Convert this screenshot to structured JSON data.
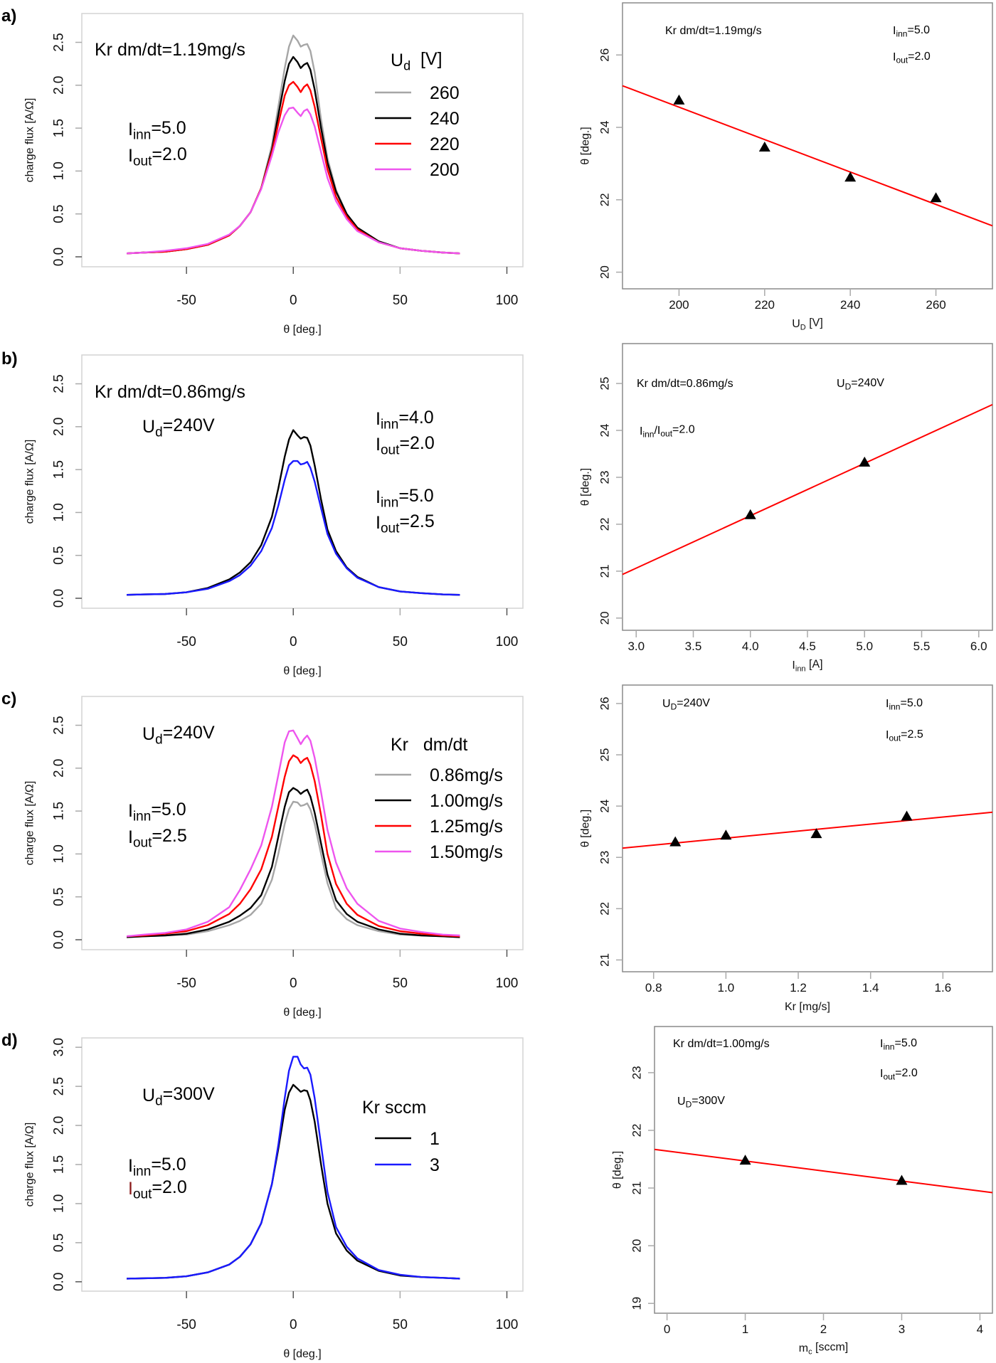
{
  "figure": {
    "panels": [
      {
        "letter": "a)"
      },
      {
        "letter": "b)"
      },
      {
        "letter": "c)"
      },
      {
        "letter": "d)"
      }
    ]
  },
  "chart_data": [
    {
      "id": "a-left",
      "type": "line",
      "title": "",
      "xlabel": "θ [deg.]",
      "ylabel": "charge flux [A/Ω]",
      "xlim": [
        -99,
        107.5
      ],
      "ylim": [
        -0.116,
        2.836
      ],
      "xticks": [
        -50,
        0,
        50,
        100
      ],
      "yticks": [
        0.0,
        0.5,
        1.0,
        1.5,
        2.0,
        2.5
      ],
      "ytick_labels": [
        "0.0",
        "0.5",
        "1.0",
        "1.5",
        "2.0",
        "2.5"
      ],
      "grid": false,
      "x": [
        -78,
        -70,
        -60,
        -50,
        -40,
        -30,
        -25,
        -20,
        -15,
        -10,
        -7,
        -4,
        -2,
        0,
        2,
        3.5,
        5,
        6.5,
        8,
        10,
        13,
        16,
        20,
        25,
        30,
        40,
        50,
        60,
        70,
        78
      ],
      "series": [
        {
          "name": "260",
          "color": "#a6a6a6",
          "values": [
            0.04,
            0.05,
            0.06,
            0.09,
            0.14,
            0.25,
            0.36,
            0.52,
            0.8,
            1.3,
            1.75,
            2.2,
            2.45,
            2.58,
            2.52,
            2.45,
            2.47,
            2.48,
            2.4,
            2.15,
            1.6,
            1.15,
            0.78,
            0.5,
            0.34,
            0.18,
            0.1,
            0.07,
            0.05,
            0.04
          ]
        },
        {
          "name": "240",
          "color": "#000000",
          "values": [
            0.04,
            0.05,
            0.06,
            0.09,
            0.14,
            0.25,
            0.36,
            0.52,
            0.8,
            1.25,
            1.65,
            2.05,
            2.25,
            2.33,
            2.27,
            2.2,
            2.24,
            2.26,
            2.18,
            1.95,
            1.5,
            1.1,
            0.76,
            0.5,
            0.34,
            0.18,
            0.1,
            0.07,
            0.05,
            0.04
          ]
        },
        {
          "name": "220",
          "color": "#ff0000",
          "values": [
            0.04,
            0.05,
            0.06,
            0.09,
            0.14,
            0.25,
            0.36,
            0.52,
            0.8,
            1.22,
            1.55,
            1.88,
            2.0,
            2.04,
            1.98,
            1.92,
            1.98,
            2.01,
            1.94,
            1.75,
            1.38,
            1.02,
            0.7,
            0.47,
            0.32,
            0.17,
            0.1,
            0.07,
            0.05,
            0.04
          ]
        },
        {
          "name": "200",
          "color": "#ee55ee",
          "values": [
            0.04,
            0.05,
            0.07,
            0.1,
            0.15,
            0.26,
            0.36,
            0.52,
            0.79,
            1.18,
            1.45,
            1.65,
            1.73,
            1.74,
            1.68,
            1.64,
            1.7,
            1.72,
            1.66,
            1.52,
            1.22,
            0.92,
            0.65,
            0.44,
            0.3,
            0.17,
            0.1,
            0.07,
            0.05,
            0.04
          ]
        }
      ],
      "legend": {
        "title_main": "U",
        "title_sub": "d",
        "title_rest": "  [V]",
        "placement": "top-right"
      },
      "annotations": [
        {
          "main": "Kr dm/dt=1.19mg/s",
          "sub": "",
          "rest": "",
          "color": "#000000"
        },
        {
          "main": "I",
          "sub": "inn",
          "rest": "=5.0",
          "color": "#000000"
        },
        {
          "main": "I",
          "sub": "out",
          "rest": "=2.0",
          "color": "#000000"
        }
      ]
    },
    {
      "id": "a-right",
      "type": "scatter",
      "xlabel_main": "U",
      "xlabel_sub": "D",
      "xlabel_rest": " [V]",
      "ylabel": "θ [deg.]",
      "xlim": [
        186.8,
        273.2
      ],
      "ylim": [
        19.54,
        27.44
      ],
      "xticks": [
        200,
        220,
        240,
        260
      ],
      "yticks": [
        20,
        22,
        24,
        26
      ],
      "grid": false,
      "points": {
        "x": [
          200,
          220,
          240,
          260
        ],
        "y": [
          24.75,
          23.45,
          22.62,
          22.05
        ]
      },
      "fit_line": {
        "x": [
          186.8,
          273.2
        ],
        "y": [
          25.15,
          21.28
        ],
        "color": "#ff0000"
      },
      "annotations": [
        {
          "main": "Kr dm/dt=1.19mg/s",
          "sub": "",
          "rest": ""
        },
        {
          "main": "I",
          "sub": "inn",
          "rest": "=5.0"
        },
        {
          "main": "I",
          "sub": "out",
          "rest": "=2.0"
        }
      ]
    },
    {
      "id": "b-left",
      "type": "line",
      "xlabel": "θ [deg.]",
      "ylabel": "charge flux [A/Ω]",
      "xlim": [
        -99,
        107.5
      ],
      "ylim": [
        -0.116,
        2.836
      ],
      "xticks": [
        -50,
        0,
        50,
        100
      ],
      "yticks": [
        0.0,
        0.5,
        1.0,
        1.5,
        2.0,
        2.5
      ],
      "ytick_labels": [
        "0.0",
        "0.5",
        "1.0",
        "1.5",
        "2.0",
        "2.5"
      ],
      "grid": false,
      "x": [
        -78,
        -70,
        -60,
        -50,
        -40,
        -30,
        -25,
        -20,
        -15,
        -10,
        -7,
        -4,
        -2,
        0,
        2,
        3.5,
        5,
        6.5,
        8,
        10,
        13,
        16,
        20,
        25,
        30,
        40,
        50,
        60,
        70,
        78
      ],
      "series": [
        {
          "name": "Iinn=4.0 Iout=2.0",
          "color": "#000000",
          "values": [
            0.04,
            0.045,
            0.05,
            0.07,
            0.12,
            0.22,
            0.3,
            0.42,
            0.62,
            0.95,
            1.28,
            1.65,
            1.85,
            1.96,
            1.9,
            1.86,
            1.88,
            1.87,
            1.78,
            1.55,
            1.15,
            0.8,
            0.55,
            0.36,
            0.25,
            0.13,
            0.08,
            0.06,
            0.045,
            0.04
          ]
        },
        {
          "name": "Iinn=5.0 Iout=2.5",
          "color": "#1a1aff",
          "values": [
            0.04,
            0.045,
            0.05,
            0.07,
            0.11,
            0.2,
            0.27,
            0.38,
            0.55,
            0.82,
            1.08,
            1.38,
            1.55,
            1.6,
            1.6,
            1.56,
            1.57,
            1.59,
            1.52,
            1.36,
            1.05,
            0.75,
            0.52,
            0.35,
            0.24,
            0.13,
            0.08,
            0.06,
            0.045,
            0.04
          ]
        }
      ],
      "annotations": [
        {
          "main": "Kr dm/dt=0.86mg/s",
          "sub": "",
          "rest": "",
          "color": "#000000"
        },
        {
          "main": "U",
          "sub": "d",
          "rest": "=240V",
          "color": "#000000"
        },
        {
          "main": "I",
          "sub": "inn",
          "rest": "=4.0",
          "color": "#000000"
        },
        {
          "main": "I",
          "sub": "out",
          "rest": "=2.0",
          "color": "#000000"
        },
        {
          "main": "I",
          "sub": "inn",
          "rest": "=5.0",
          "color": "#1a1aff"
        },
        {
          "main": "I",
          "sub": "out",
          "rest": "=2.5",
          "color": "#1a1aff"
        }
      ]
    },
    {
      "id": "b-right",
      "type": "scatter",
      "xlabel_main": "I",
      "xlabel_sub": "inn",
      "xlabel_rest": " [A]",
      "ylabel": "θ [deg.]",
      "xlim": [
        2.88,
        6.12
      ],
      "ylim": [
        19.74,
        25.85
      ],
      "xticks": [
        3.0,
        3.5,
        4.0,
        4.5,
        5.0,
        5.5,
        6.0
      ],
      "xtick_labels": [
        "3.0",
        "3.5",
        "4.0",
        "4.5",
        "5.0",
        "5.5",
        "6.0"
      ],
      "yticks": [
        20,
        21,
        22,
        23,
        24,
        25
      ],
      "grid": false,
      "points": {
        "x": [
          4.0,
          5.0
        ],
        "y": [
          22.2,
          23.32
        ]
      },
      "fit_line": {
        "x": [
          2.88,
          6.12
        ],
        "y": [
          20.93,
          24.55
        ],
        "color": "#ff0000"
      },
      "annotations": [
        {
          "main": "Kr dm/dt=0.86mg/s",
          "sub": "",
          "rest": ""
        },
        {
          "main": "U",
          "sub": "D",
          "rest": "=240V"
        },
        {
          "main": "I",
          "sub": "inn",
          "rest": "/I",
          "sub2": "out",
          "rest2": "=2.0"
        }
      ]
    },
    {
      "id": "c-left",
      "type": "line",
      "xlabel": "θ [deg.]",
      "ylabel": "charge flux [A/Ω]",
      "xlim": [
        -99,
        107.5
      ],
      "ylim": [
        -0.116,
        2.836
      ],
      "xticks": [
        -50,
        0,
        50,
        100
      ],
      "yticks": [
        0.0,
        0.5,
        1.0,
        1.5,
        2.0,
        2.5
      ],
      "ytick_labels": [
        "0.0",
        "0.5",
        "1.0",
        "1.5",
        "2.0",
        "2.5"
      ],
      "grid": false,
      "x": [
        -78,
        -70,
        -60,
        -50,
        -40,
        -30,
        -25,
        -20,
        -15,
        -10,
        -7,
        -4,
        -2,
        0,
        2,
        3.5,
        5,
        6.5,
        8,
        10,
        13,
        16,
        20,
        25,
        30,
        40,
        50,
        60,
        70,
        78
      ],
      "series": [
        {
          "name": "0.86mg/s",
          "color": "#a6a6a6",
          "values": [
            0.03,
            0.04,
            0.05,
            0.06,
            0.1,
            0.17,
            0.22,
            0.29,
            0.42,
            0.7,
            1.0,
            1.35,
            1.52,
            1.61,
            1.6,
            1.56,
            1.57,
            1.59,
            1.52,
            1.35,
            1.0,
            0.66,
            0.37,
            0.24,
            0.17,
            0.1,
            0.06,
            0.05,
            0.04,
            0.03
          ]
        },
        {
          "name": "1.00mg/s",
          "color": "#000000",
          "values": [
            0.03,
            0.04,
            0.05,
            0.07,
            0.12,
            0.21,
            0.28,
            0.37,
            0.52,
            0.85,
            1.2,
            1.55,
            1.72,
            1.77,
            1.74,
            1.7,
            1.73,
            1.75,
            1.67,
            1.48,
            1.12,
            0.76,
            0.46,
            0.3,
            0.21,
            0.12,
            0.07,
            0.05,
            0.04,
            0.03
          ]
        },
        {
          "name": "1.25mg/s",
          "color": "#ff0000",
          "values": [
            0.04,
            0.05,
            0.07,
            0.1,
            0.17,
            0.3,
            0.42,
            0.59,
            0.82,
            1.2,
            1.55,
            1.9,
            2.08,
            2.15,
            2.12,
            2.06,
            2.1,
            2.12,
            2.04,
            1.85,
            1.45,
            1.0,
            0.65,
            0.42,
            0.29,
            0.16,
            0.1,
            0.07,
            0.05,
            0.04
          ]
        },
        {
          "name": "1.50mg/s",
          "color": "#ee55ee",
          "values": [
            0.04,
            0.06,
            0.08,
            0.12,
            0.21,
            0.38,
            0.58,
            0.82,
            1.1,
            1.55,
            1.92,
            2.3,
            2.43,
            2.44,
            2.35,
            2.28,
            2.34,
            2.38,
            2.32,
            2.12,
            1.72,
            1.28,
            0.9,
            0.6,
            0.42,
            0.22,
            0.13,
            0.09,
            0.06,
            0.05
          ]
        }
      ],
      "legend": {
        "title_main": "Kr",
        "title_sub": "",
        "title_rest": "   dm/dt",
        "placement": "top-right"
      },
      "annotations": [
        {
          "main": "U",
          "sub": "d",
          "rest": "=240V",
          "color": "#000000"
        },
        {
          "main": "I",
          "sub": "inn",
          "rest": "=5.0",
          "color": "#000000"
        },
        {
          "main": "I",
          "sub": "out",
          "rest": "=2.5",
          "color": "#000000"
        }
      ]
    },
    {
      "id": "c-right",
      "type": "scatter",
      "xlabel_main": "Kr [mg/s]",
      "xlabel_sub": "",
      "xlabel_rest": "",
      "ylabel": "θ [deg.]",
      "xlim": [
        0.714,
        1.737
      ],
      "ylim": [
        20.77,
        26.36
      ],
      "xticks": [
        0.8,
        1.0,
        1.2,
        1.4,
        1.6
      ],
      "xtick_labels": [
        "0.8",
        "1.0",
        "1.2",
        "1.4",
        "1.6"
      ],
      "yticks": [
        21,
        22,
        23,
        24,
        25,
        26
      ],
      "grid": false,
      "points": {
        "x": [
          0.86,
          1.0,
          1.25,
          1.5
        ],
        "y": [
          23.3,
          23.43,
          23.46,
          23.8
        ]
      },
      "fit_line": {
        "x": [
          0.714,
          1.737
        ],
        "y": [
          23.18,
          23.88
        ],
        "color": "#ff0000"
      },
      "annotations": [
        {
          "main": "U",
          "sub": "D",
          "rest": "=240V"
        },
        {
          "main": "I",
          "sub": "inn",
          "rest": "=5.0"
        },
        {
          "main": "I",
          "sub": "out",
          "rest": "=2.5"
        }
      ]
    },
    {
      "id": "d-left",
      "type": "line",
      "xlabel": "θ [deg.]",
      "ylabel": "charge flux [A/Ω]",
      "xlim": [
        -99,
        107.5
      ],
      "ylim": [
        -0.12,
        3.12
      ],
      "xticks": [
        -50,
        0,
        50,
        100
      ],
      "yticks": [
        0.0,
        0.5,
        1.0,
        1.5,
        2.0,
        2.5,
        3.0
      ],
      "ytick_labels": [
        "0.0",
        "0.5",
        "1.0",
        "1.5",
        "2.0",
        "2.5",
        "3.0"
      ],
      "grid": false,
      "x": [
        -78,
        -70,
        -60,
        -50,
        -40,
        -30,
        -25,
        -20,
        -15,
        -10,
        -7,
        -4,
        -2,
        0,
        2,
        3.5,
        5,
        6.5,
        8,
        10,
        13,
        16,
        20,
        25,
        30,
        40,
        50,
        60,
        70,
        78
      ],
      "series": [
        {
          "name": "1",
          "color": "#000000",
          "values": [
            0.04,
            0.045,
            0.05,
            0.07,
            0.12,
            0.22,
            0.32,
            0.48,
            0.75,
            1.25,
            1.7,
            2.2,
            2.42,
            2.52,
            2.47,
            2.43,
            2.45,
            2.44,
            2.32,
            2.05,
            1.5,
            1.0,
            0.62,
            0.4,
            0.27,
            0.14,
            0.08,
            0.06,
            0.05,
            0.04
          ]
        },
        {
          "name": "3",
          "color": "#1a1aff",
          "values": [
            0.04,
            0.045,
            0.05,
            0.07,
            0.12,
            0.22,
            0.32,
            0.48,
            0.75,
            1.25,
            1.75,
            2.35,
            2.7,
            2.88,
            2.88,
            2.78,
            2.73,
            2.74,
            2.65,
            2.35,
            1.75,
            1.15,
            0.7,
            0.45,
            0.3,
            0.15,
            0.09,
            0.06,
            0.05,
            0.04
          ]
        }
      ],
      "legend": {
        "title_main": "Kr  sccm",
        "title_sub": "",
        "title_rest": "",
        "placement": "top-right"
      },
      "annotations": [
        {
          "main": "U",
          "sub": "d",
          "rest": "=300V",
          "color": "#000000"
        },
        {
          "main": "I",
          "sub": "inn",
          "rest": "=5.0",
          "color": "#000000"
        },
        {
          "main": "I",
          "sub": "out",
          "rest": "=2.0",
          "color": "#000000",
          "main_color": "#8b1a1a"
        }
      ]
    },
    {
      "id": "d-right",
      "type": "scatter",
      "xlabel_main": "m",
      "xlabel_sub": "c",
      "xlabel_rest": " [sccm]",
      "ylabel": "θ [deg.]",
      "xlim": [
        -0.16,
        4.16
      ],
      "ylim": [
        18.83,
        23.8
      ],
      "xticks": [
        0,
        1,
        2,
        3,
        4
      ],
      "yticks": [
        19,
        20,
        21,
        22,
        23
      ],
      "grid": false,
      "points": {
        "x": [
          1,
          3
        ],
        "y": [
          21.48,
          21.13
        ]
      },
      "fit_line": {
        "x": [
          -0.16,
          4.16
        ],
        "y": [
          21.67,
          20.92
        ],
        "color": "#ff0000"
      },
      "annotations": [
        {
          "main": "Kr dm/dt=1.00mg/s",
          "sub": "",
          "rest": ""
        },
        {
          "main": "I",
          "sub": "inn",
          "rest": "=5.0"
        },
        {
          "main": "I",
          "sub": "out",
          "rest": "=2.0"
        },
        {
          "main": "U",
          "sub": "D",
          "rest": "=300V"
        }
      ]
    }
  ]
}
